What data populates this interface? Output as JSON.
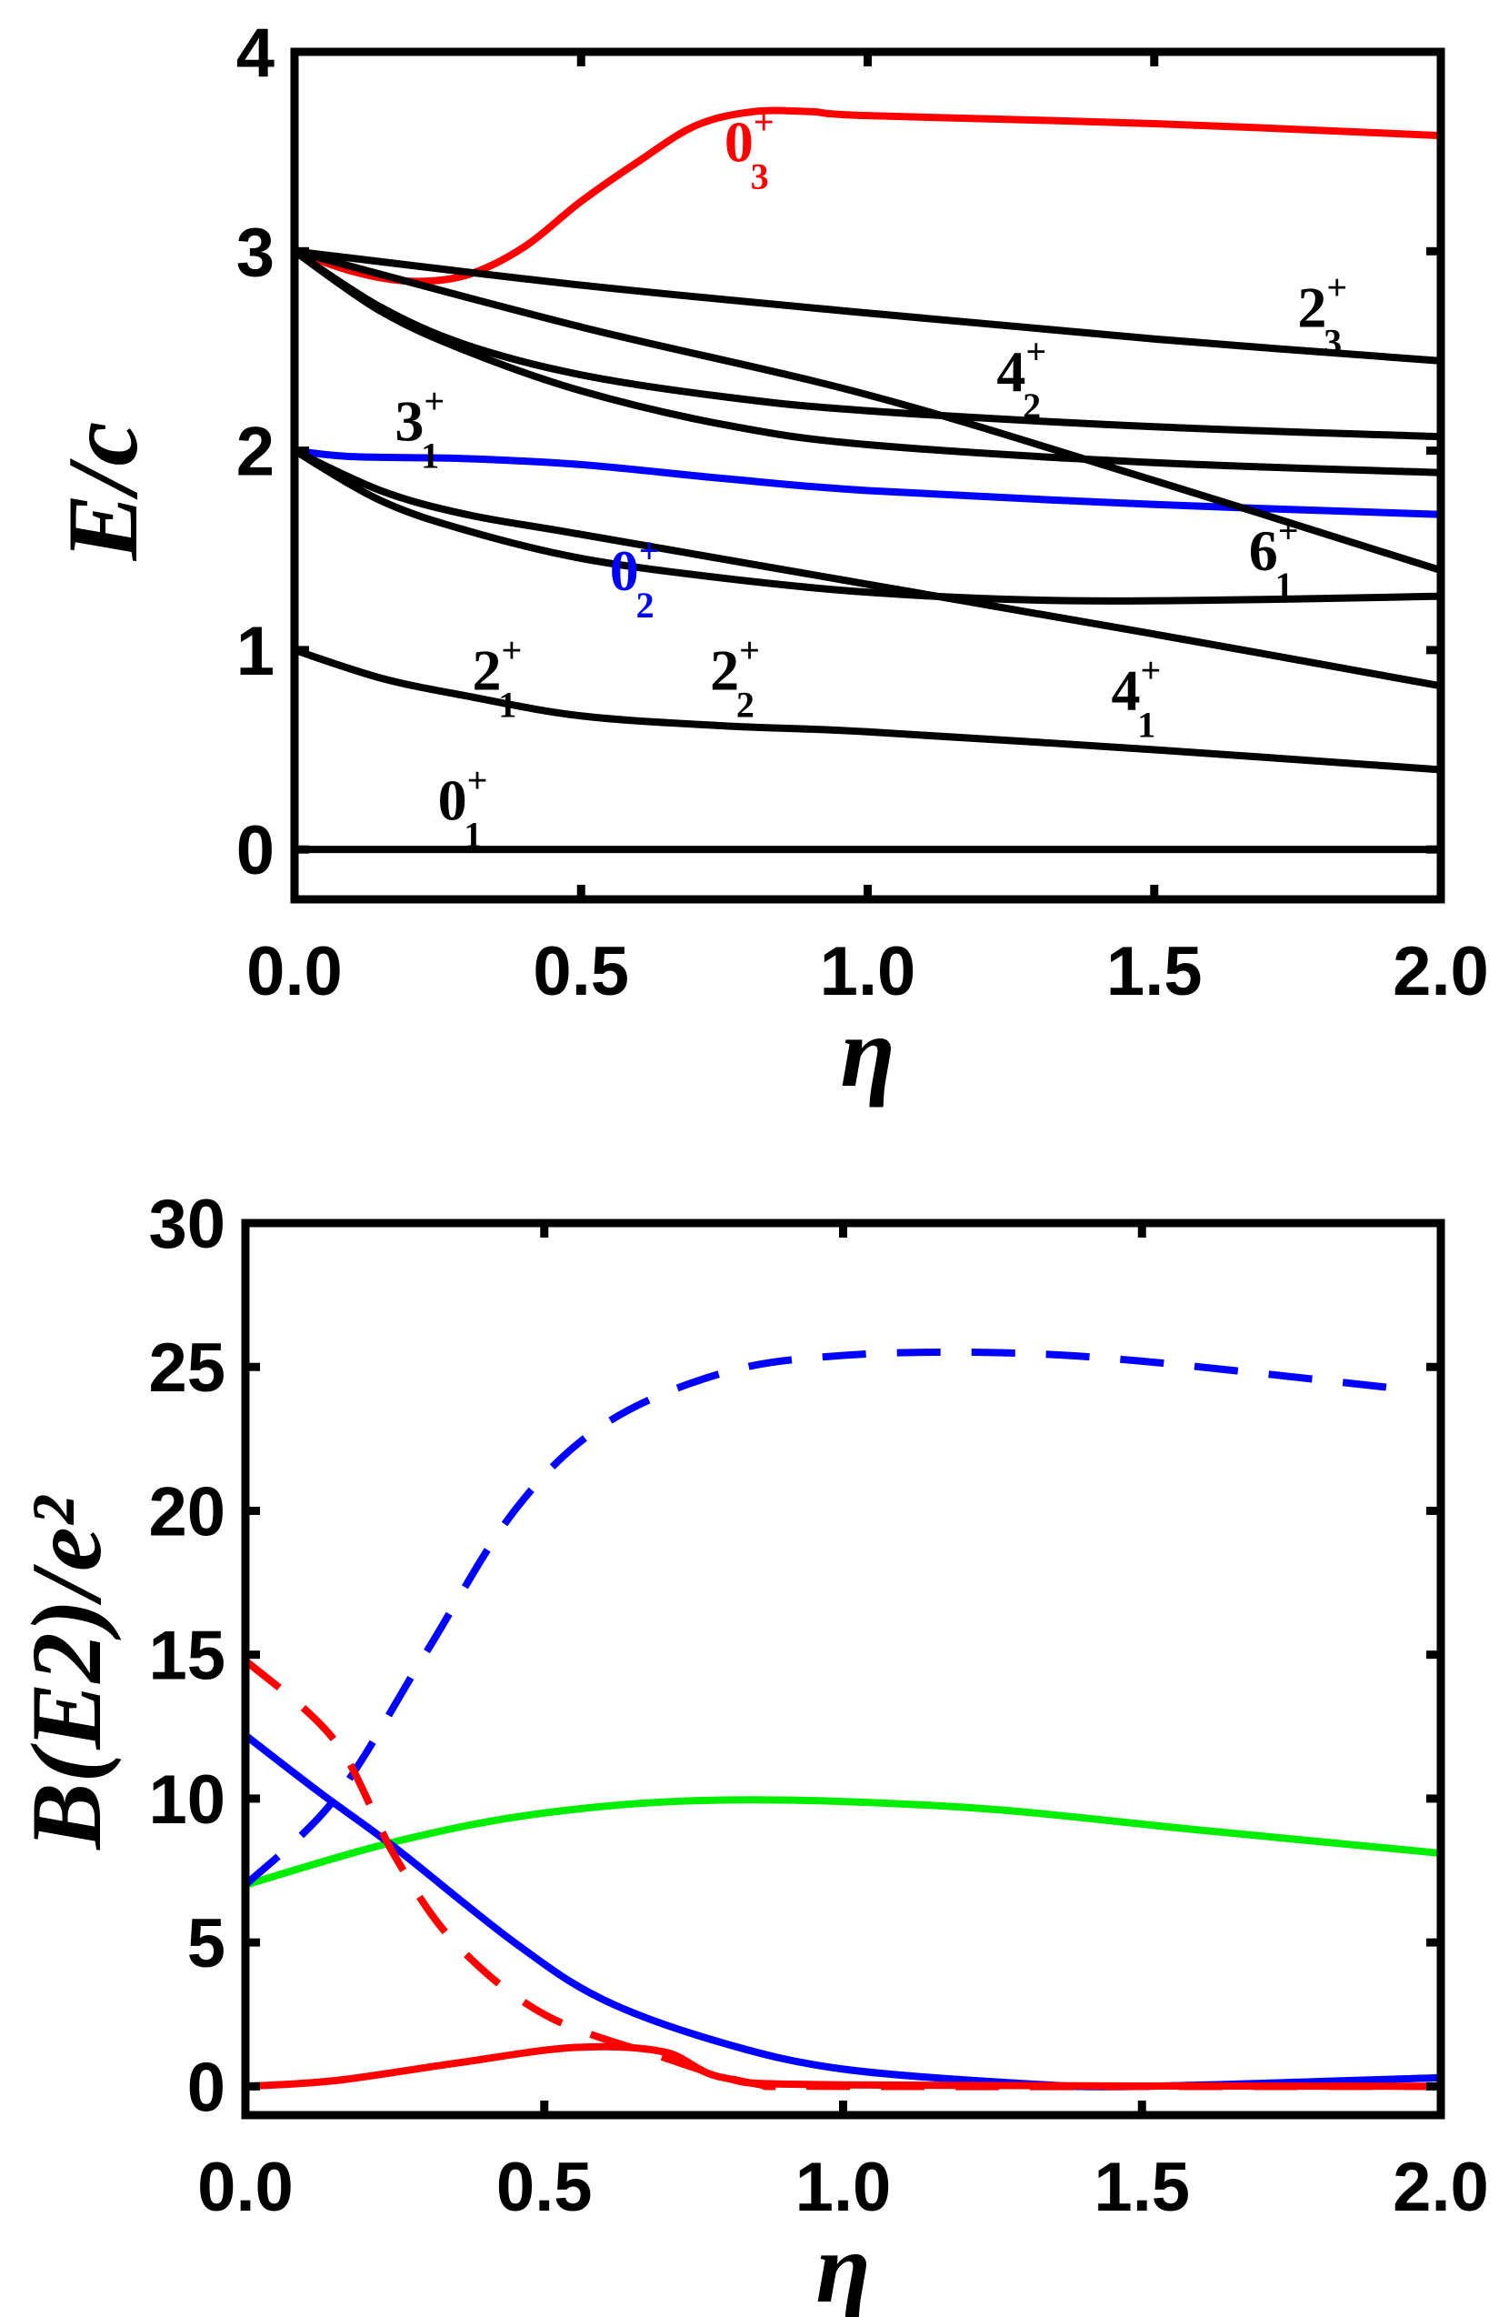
{
  "chart_data": [
    {
      "type": "line",
      "xlabel": "η",
      "ylabel": "E/c",
      "xlim": [
        0,
        2
      ],
      "ylim": [
        -0.25,
        4
      ],
      "xticks": [
        "0.0",
        "0.5",
        "1.0",
        "1.5",
        "2.0"
      ],
      "yticks": [
        "0",
        "1",
        "2",
        "3",
        "4"
      ],
      "series": [
        {
          "name": "0_1+",
          "label": {
            "main": "0",
            "sup": "+",
            "sub": "1"
          },
          "color": "#000000",
          "x": [
            0,
            2
          ],
          "y": [
            0,
            0
          ]
        },
        {
          "name": "2_1+",
          "label": {
            "main": "2",
            "sup": "+",
            "sub": "1"
          },
          "color": "#000000",
          "x": [
            0,
            0.15,
            0.3,
            0.5,
            0.75,
            1.0,
            1.5,
            2.0
          ],
          "y": [
            1.0,
            0.86,
            0.77,
            0.67,
            0.62,
            0.59,
            0.5,
            0.4
          ]
        },
        {
          "name": "0_2+",
          "label": {
            "main": "0",
            "sup": "+",
            "sub": "2"
          },
          "color": "#0000ff",
          "x": [
            0,
            0.1,
            0.3,
            0.5,
            0.75,
            1.0,
            1.5,
            2.0
          ],
          "y": [
            2.0,
            1.97,
            1.96,
            1.93,
            1.86,
            1.8,
            1.73,
            1.68
          ]
        },
        {
          "name": "0_3+",
          "label": {
            "main": "0",
            "sup": "+",
            "sub": "3"
          },
          "color": "#ff0000",
          "x": [
            0,
            0.1,
            0.2,
            0.3,
            0.4,
            0.5,
            0.6,
            0.7,
            0.8,
            0.9,
            1.0,
            1.5,
            2.0
          ],
          "y": [
            3.0,
            2.9,
            2.85,
            2.88,
            3.02,
            3.25,
            3.45,
            3.63,
            3.7,
            3.7,
            3.68,
            3.64,
            3.58
          ]
        },
        {
          "name": "2_3+",
          "label": {
            "main": "2",
            "sup": "+",
            "sub": "3"
          },
          "color": "#000000",
          "x": [
            0,
            0.5,
            1.0,
            1.5,
            2.0
          ],
          "y": [
            3.0,
            2.83,
            2.69,
            2.56,
            2.45
          ]
        },
        {
          "name": "4_2+",
          "label": {
            "main": "4",
            "sup": "+",
            "sub": "2"
          },
          "color": "#000000",
          "x": [
            0,
            0.5,
            1.0,
            1.5,
            2.0
          ],
          "y": [
            3.0,
            2.62,
            2.28,
            1.85,
            1.4
          ]
        },
        {
          "name": "3_1+",
          "label": {
            "main": "3",
            "sup": "+",
            "sub": "1"
          },
          "color": "#000000",
          "x": [
            0,
            0.15,
            0.3,
            0.5,
            0.75,
            1.0,
            1.5,
            2.0
          ],
          "y": [
            3.0,
            2.72,
            2.53,
            2.38,
            2.27,
            2.2,
            2.12,
            2.07
          ]
        },
        {
          "name": "level-3-lower",
          "color": "#000000",
          "x": [
            0,
            0.15,
            0.3,
            0.5,
            0.75,
            1.0,
            1.5,
            2.0
          ],
          "y": [
            3.0,
            2.7,
            2.5,
            2.3,
            2.13,
            2.03,
            1.94,
            1.89
          ]
        },
        {
          "name": "2_2+",
          "label": {
            "main": "2",
            "sup": "+",
            "sub": "2"
          },
          "color": "#000000",
          "x": [
            0,
            0.15,
            0.3,
            0.5,
            0.75,
            1.0,
            1.3,
            1.6,
            2.0
          ],
          "y": [
            2.0,
            1.75,
            1.6,
            1.46,
            1.36,
            1.29,
            1.25,
            1.25,
            1.27
          ]
        },
        {
          "name": "4_1+",
          "label": {
            "main": "4",
            "sup": "+",
            "sub": "1"
          },
          "color": "#000000",
          "x": [
            0,
            0.15,
            0.3,
            0.5,
            1.0,
            1.5,
            2.0
          ],
          "y": [
            2.0,
            1.8,
            1.68,
            1.58,
            1.33,
            1.08,
            0.82
          ]
        },
        {
          "name": "6_1+",
          "label": {
            "main": "6",
            "sup": "+",
            "sub": "1"
          },
          "color": "#000000",
          "x": [],
          "y": []
        }
      ]
    },
    {
      "type": "line",
      "xlabel": "η",
      "ylabel": "B(E2)/e²",
      "xlim": [
        0,
        2
      ],
      "ylim": [
        -1,
        30
      ],
      "xticks": [
        "0.0",
        "0.5",
        "1.0",
        "1.5",
        "2.0"
      ],
      "yticks": [
        "0",
        "5",
        "10",
        "15",
        "20",
        "25",
        "30"
      ],
      "series": [
        {
          "name": "green-solid",
          "color": "#00ee00",
          "dash": false,
          "x": [
            0,
            0.25,
            0.5,
            0.8,
            1.2,
            1.6,
            2.0
          ],
          "y": [
            7.0,
            8.5,
            9.5,
            9.95,
            9.7,
            8.9,
            8.1
          ]
        },
        {
          "name": "blue-solid",
          "color": "#0000ff",
          "dash": false,
          "x": [
            0,
            0.125,
            0.25,
            0.45,
            0.6,
            0.8,
            1.0,
            1.3,
            1.5,
            2.0
          ],
          "y": [
            12.2,
            10.2,
            8.3,
            5.0,
            3.0,
            1.5,
            0.6,
            0.1,
            0.0,
            0.3
          ]
        },
        {
          "name": "blue-dashed",
          "color": "#0000ff",
          "dash": true,
          "x": [
            0,
            0.15,
            0.3,
            0.45,
            0.6,
            0.8,
            1.0,
            1.25,
            1.5,
            1.95
          ],
          "y": [
            7.0,
            10.0,
            15.0,
            20.0,
            23.0,
            24.8,
            25.4,
            25.5,
            25.2,
            24.2
          ]
        },
        {
          "name": "red-dashed",
          "color": "#ff0000",
          "dash": true,
          "x": [
            0,
            0.15,
            0.25,
            0.35,
            0.5,
            0.7,
            0.85,
            1.0,
            2.0
          ],
          "y": [
            14.8,
            12.0,
            8.0,
            5.0,
            2.5,
            1.0,
            0.1,
            0.0,
            0.0
          ]
        },
        {
          "name": "red-solid",
          "color": "#ff0000",
          "dash": false,
          "x": [
            0,
            0.15,
            0.35,
            0.55,
            0.7,
            0.8,
            1.0,
            2.0
          ],
          "y": [
            0.0,
            0.2,
            0.8,
            1.35,
            1.2,
            0.3,
            0.05,
            0.0
          ]
        }
      ]
    }
  ]
}
